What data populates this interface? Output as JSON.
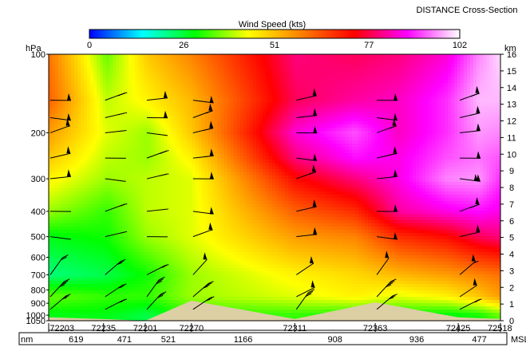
{
  "chart_data": {
    "type": "heatmap",
    "title": "DISTANCE Cross-Section",
    "colorbar": {
      "label": "Wind Speed (kts)",
      "ticks": [
        0,
        26,
        51,
        77,
        102
      ],
      "range": [
        0,
        102
      ],
      "colors": [
        "#0000ff",
        "#00ffff",
        "#00ff00",
        "#ffff00",
        "#ff8000",
        "#ff0000",
        "#ff00ff",
        "#ffffff"
      ]
    },
    "left_axis": {
      "label": "hPa",
      "ticks": [
        100,
        200,
        300,
        400,
        500,
        600,
        700,
        800,
        900,
        1000,
        1050
      ],
      "range": [
        100,
        1050
      ],
      "scale": "log"
    },
    "right_axis": {
      "label": "km",
      "ticks": [
        0,
        1,
        2,
        3,
        4,
        5,
        6,
        7,
        8,
        9,
        10,
        11,
        12,
        13,
        14,
        15,
        16
      ],
      "range": [
        0,
        16
      ]
    },
    "bottom_label": "MSL",
    "distance_unit": "nm",
    "stations": [
      "72203",
      "72235",
      "72201",
      "72270",
      "72311",
      "72363",
      "72425",
      "72518"
    ],
    "segment_distances_nm": [
      619,
      471,
      521,
      1166,
      908,
      936,
      477
    ],
    "speed_field_kts": {
      "pressure_levels_hpa": [
        100,
        150,
        200,
        250,
        300,
        400,
        500,
        700,
        850,
        1000
      ],
      "rows": [
        [
          60,
          35,
          50,
          58,
          80,
          78,
          80,
          85,
          95,
          100
        ],
        [
          62,
          40,
          45,
          52,
          78,
          82,
          84,
          90,
          98,
          98
        ],
        [
          55,
          42,
          38,
          50,
          85,
          92,
          84,
          90,
          96,
          95
        ],
        [
          50,
          40,
          38,
          45,
          80,
          88,
          86,
          92,
          94,
          92
        ],
        [
          45,
          38,
          40,
          42,
          72,
          80,
          86,
          95,
          96,
          90
        ],
        [
          38,
          32,
          40,
          42,
          62,
          68,
          82,
          86,
          88,
          86
        ],
        [
          28,
          30,
          38,
          42,
          55,
          58,
          68,
          72,
          78,
          80
        ],
        [
          22,
          25,
          30,
          38,
          45,
          48,
          52,
          55,
          58,
          60
        ],
        [
          35,
          32,
          32,
          38,
          42,
          45,
          42,
          45,
          50,
          55
        ],
        [
          28,
          28,
          25,
          32,
          32,
          30,
          30,
          28,
          30,
          35
        ]
      ]
    }
  }
}
